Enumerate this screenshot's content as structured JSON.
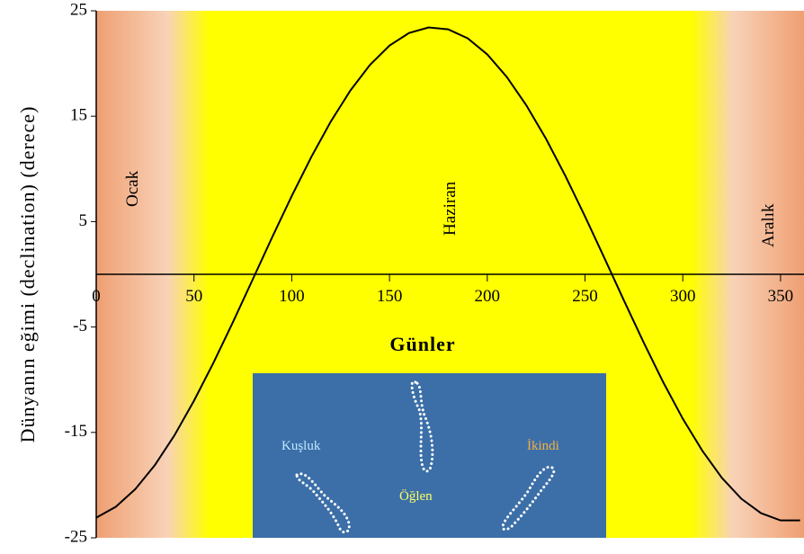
{
  "chart_data": {
    "type": "line",
    "xlabel": "Günler",
    "ylabel": "Dünyanın eğimi (declination) (derece)",
    "x": [
      0,
      10,
      20,
      30,
      40,
      50,
      60,
      70,
      80,
      90,
      100,
      110,
      120,
      130,
      140,
      150,
      160,
      170,
      180,
      190,
      200,
      210,
      220,
      230,
      240,
      250,
      260,
      270,
      280,
      290,
      300,
      310,
      320,
      330,
      340,
      350,
      360
    ],
    "series": [
      {
        "color": "#000000",
        "values": [
          -23.09,
          -22.06,
          -20.38,
          -18.1,
          -15.28,
          -12.0,
          -8.38,
          -4.51,
          -0.5,
          3.52,
          7.43,
          11.13,
          14.5,
          17.44,
          19.87,
          21.7,
          22.9,
          23.42,
          23.24,
          22.39,
          20.86,
          18.72,
          16.03,
          12.87,
          9.32,
          5.49,
          1.51,
          -2.52,
          -6.47,
          -10.24,
          -13.7,
          -16.74,
          -19.31,
          -21.3,
          -22.66,
          -23.35,
          -23.35
        ]
      }
    ],
    "xlim": [
      0,
      362
    ],
    "ylim": [
      -25,
      25
    ],
    "xticks": [
      0,
      50,
      100,
      150,
      200,
      250,
      300,
      350
    ],
    "yticks": [
      -25,
      -15,
      -5,
      5,
      15,
      25
    ],
    "months": [
      "Ocak",
      "Haziran",
      "Aralık"
    ],
    "inset_labels": [
      "Kuşluk",
      "Öğlen",
      "İkindi"
    ]
  }
}
